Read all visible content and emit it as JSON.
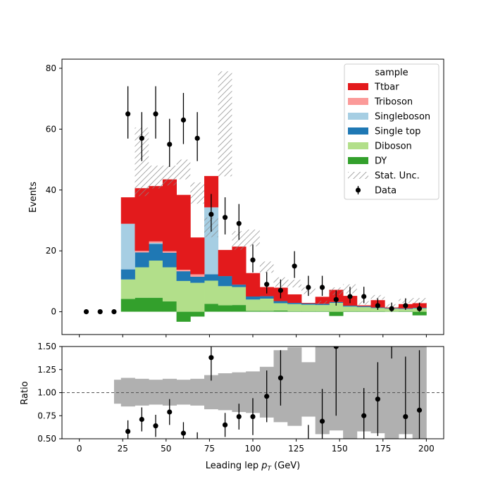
{
  "chart_data": [
    {
      "type": "bar",
      "stacked": true,
      "ylabel": "Events",
      "xlim": [
        -10,
        210
      ],
      "ylim": [
        -7.5,
        83
      ],
      "xticks": [
        0,
        25,
        50,
        75,
        100,
        125,
        150,
        175,
        200
      ],
      "yticks": [
        0,
        20,
        40,
        60,
        80
      ],
      "bin_edges": [
        20,
        24,
        32,
        40,
        48,
        56,
        64,
        72,
        80,
        88,
        96,
        104,
        112,
        120,
        128,
        136,
        144,
        152,
        160,
        168,
        176,
        184,
        192,
        200
      ],
      "series": [
        {
          "name": "DY",
          "color": "#33a02c",
          "values": [
            0,
            4.2,
            4.6,
            4.6,
            3.4,
            -3.3,
            -1.6,
            2.6,
            2.1,
            2.2,
            0.3,
            0.3,
            0.4,
            0.2,
            0.2,
            0.2,
            -1.4,
            0.2,
            0.2,
            0.2,
            0.1,
            0.2,
            -1.2
          ]
        },
        {
          "name": "Diboson",
          "color": "#b2df8a",
          "values": [
            0,
            6.4,
            10.0,
            12.2,
            11.2,
            10.1,
            9.5,
            7.6,
            6.3,
            5.9,
            3.7,
            4.0,
            2.4,
            2.3,
            2.1,
            2.0,
            2.9,
            1.5,
            1.3,
            1.0,
            0.9,
            0.7,
            1.1
          ]
        },
        {
          "name": "Single top",
          "color": "#1f78b4",
          "values": [
            0,
            3.3,
            4.9,
            5.5,
            4.8,
            3.2,
            2.0,
            2.1,
            3.3,
            0.8,
            1.0,
            0.8,
            0.7,
            0.4,
            0.4,
            0.4,
            0.3,
            0.3,
            0.3,
            0.2,
            0.2,
            0.2,
            0.2
          ]
        },
        {
          "name": "Singleboson",
          "color": "#a6cee3",
          "values": [
            0,
            15.0,
            0,
            0.3,
            0,
            0,
            0,
            22.0,
            0,
            0,
            0,
            0,
            0,
            0,
            0,
            0,
            0,
            0,
            0,
            0,
            0,
            0,
            0
          ]
        },
        {
          "name": "Triboson",
          "color": "#fb9a99",
          "values": [
            0,
            0,
            0.5,
            0.5,
            0.5,
            0.5,
            0.8,
            0,
            0,
            0,
            0,
            0,
            0,
            0,
            0,
            0,
            0,
            0,
            0,
            0,
            0,
            0,
            0
          ]
        },
        {
          "name": "Ttbar",
          "color": "#e31a1c",
          "values": [
            0,
            8.7,
            20.6,
            18.2,
            23.6,
            24.6,
            12.1,
            10.3,
            8.6,
            12.5,
            7.7,
            3.0,
            4.4,
            2.8,
            0.2,
            2.3,
            4.0,
            3.2,
            0.3,
            2.4,
            0.2,
            1.4,
            1.5
          ]
        }
      ],
      "stat_unc": {
        "label": "Stat. Unc.",
        "low": [
          0,
          0,
          38.0,
          40.5,
          41.5,
          43.5,
          35.5,
          24.5,
          44.5,
          20.3,
          21.5,
          12.8,
          8.2,
          8.0,
          5.8,
          2.4,
          5.5,
          6.0,
          2.3,
          4.0,
          1.4,
          2.9,
          2.8
        ],
        "high": [
          0,
          0,
          60.5,
          48.0,
          48.0,
          50.0,
          42.5,
          31.0,
          79.0,
          26.5,
          27.0,
          16.5,
          11.3,
          10.5,
          8.0,
          3.6,
          8.0,
          9.0,
          3.5,
          5.5,
          2.5,
          4.2,
          4.5
        ]
      },
      "data": {
        "label": "Data",
        "x": [
          4,
          12,
          20,
          28,
          36,
          44,
          52,
          60,
          68,
          76,
          84,
          92,
          100,
          108,
          116,
          124,
          132,
          140,
          148,
          156,
          164,
          172,
          180,
          188,
          196
        ],
        "y": [
          0,
          0,
          0,
          65,
          57,
          65,
          55,
          63,
          57,
          32,
          31,
          29,
          17,
          9,
          7,
          15,
          8,
          8,
          4,
          5,
          5,
          2,
          1,
          2,
          1
        ],
        "yerr_low": [
          0,
          0,
          0,
          8.1,
          7.5,
          8.1,
          7.4,
          7.9,
          7.5,
          5.7,
          5.6,
          5.4,
          4.1,
          3.0,
          2.6,
          3.9,
          2.8,
          2.8,
          2.0,
          2.2,
          2.2,
          1.4,
          1.0,
          1.4,
          1.0
        ],
        "yerr_high": [
          0,
          0,
          0,
          9.1,
          8.6,
          9.1,
          8.4,
          8.9,
          8.6,
          6.7,
          6.6,
          6.4,
          5.1,
          4.0,
          3.6,
          4.9,
          3.8,
          3.8,
          3.0,
          3.2,
          3.2,
          2.4,
          2.0,
          2.4,
          2.0
        ]
      },
      "legend": {
        "title": "sample",
        "placement": "top-right",
        "entries": [
          "Ttbar",
          "Triboson",
          "Singleboson",
          "Single top",
          "Diboson",
          "DY",
          "Stat. Unc.",
          "Data"
        ]
      }
    },
    {
      "type": "scatter",
      "xlabel_prefix": "Leading lep ",
      "xlabel_var": "p",
      "xlabel_sub": "T",
      "xlabel_suffix": " (GeV)",
      "ylabel": "Ratio",
      "xlim": [
        -10,
        210
      ],
      "ylim": [
        0.5,
        1.5
      ],
      "xticks": [
        0,
        25,
        50,
        75,
        100,
        125,
        150,
        175,
        200
      ],
      "yticks": [
        "0.50",
        "0.75",
        "1.00",
        "1.25",
        "1.50"
      ],
      "reference_line": 1.0,
      "band_low": [
        0.88,
        0.85,
        0.86,
        0.87,
        0.86,
        0.87,
        0.86,
        0.82,
        0.81,
        0.79,
        0.78,
        0.73,
        0.68,
        0.64,
        0.74,
        0.55,
        0.59,
        0.5,
        0.58,
        0.56,
        0.47,
        0.55,
        0.5
      ],
      "band_high": [
        1.14,
        1.16,
        1.15,
        1.14,
        1.15,
        1.14,
        1.15,
        1.19,
        1.21,
        1.22,
        1.23,
        1.28,
        1.46,
        1.49,
        1.33,
        1.6,
        1.55,
        1.8,
        1.6,
        1.6,
        1.95,
        1.7,
        1.7
      ],
      "points": {
        "x": [
          28,
          36,
          44,
          52,
          60,
          68,
          76,
          84,
          92,
          100,
          108,
          116,
          132,
          140,
          148,
          164,
          172,
          188,
          196
        ],
        "y": [
          0.58,
          0.71,
          0.64,
          0.79,
          0.56,
          0.45,
          1.38,
          0.65,
          0.74,
          0.74,
          0.96,
          1.16,
          0.4,
          0.69,
          1.5,
          0.75,
          0.93,
          0.74,
          0.81
        ],
        "err": [
          0.12,
          0.13,
          0.12,
          0.14,
          0.12,
          0.12,
          0.25,
          0.13,
          0.14,
          0.2,
          0.28,
          0.3,
          0.25,
          0.35,
          0.75,
          0.3,
          0.4,
          0.65,
          0.65
        ]
      },
      "extra_segments_x": [
        180
      ]
    }
  ]
}
